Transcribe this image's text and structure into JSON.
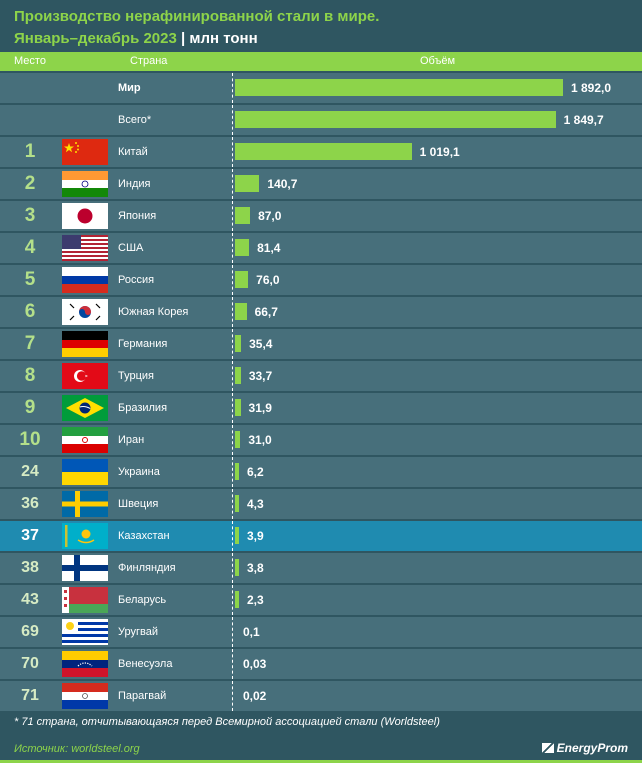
{
  "header": {
    "title": "Производство нерафинированной стали в мире.",
    "subtitle": "Январь–декабрь 2023",
    "separator": "|",
    "unit": "млн тонн",
    "col_place": "Место",
    "col_country": "Страна",
    "col_volume": "Объём"
  },
  "chart_data": {
    "type": "bar",
    "orientation": "horizontal",
    "value_max": 1892.0,
    "rows": [
      {
        "rank": "",
        "country": "Мир",
        "value": 1892.0,
        "label": "1 892,0",
        "flag": "",
        "bold": true
      },
      {
        "rank": "",
        "country": "Всего*",
        "value": 1849.7,
        "label": "1 849,7",
        "flag": "",
        "bold": false
      },
      {
        "rank": "1",
        "country": "Китай",
        "value": 1019.1,
        "label": "1 019,1",
        "flag": "china-flag-icon"
      },
      {
        "rank": "2",
        "country": "Индия",
        "value": 140.7,
        "label": "140,7",
        "flag": "india-flag-icon"
      },
      {
        "rank": "3",
        "country": "Япония",
        "value": 87.0,
        "label": "87,0",
        "flag": "japan-flag-icon"
      },
      {
        "rank": "4",
        "country": "США",
        "value": 81.4,
        "label": "81,4",
        "flag": "usa-flag-icon"
      },
      {
        "rank": "5",
        "country": "Россия",
        "value": 76.0,
        "label": "76,0",
        "flag": "russia-flag-icon"
      },
      {
        "rank": "6",
        "country": "Южная Корея",
        "value": 66.7,
        "label": "66,7",
        "flag": "south-korea-flag-icon"
      },
      {
        "rank": "7",
        "country": "Германия",
        "value": 35.4,
        "label": "35,4",
        "flag": "germany-flag-icon"
      },
      {
        "rank": "8",
        "country": "Турция",
        "value": 33.7,
        "label": "33,7",
        "flag": "turkey-flag-icon"
      },
      {
        "rank": "9",
        "country": "Бразилия",
        "value": 31.9,
        "label": "31,9",
        "flag": "brazil-flag-icon"
      },
      {
        "rank": "10",
        "country": "Иран",
        "value": 31.0,
        "label": "31,0",
        "flag": "iran-flag-icon"
      },
      {
        "rank": "24",
        "country": "Украина",
        "value": 6.2,
        "label": "6,2",
        "flag": "ukraine-flag-icon"
      },
      {
        "rank": "36",
        "country": "Швеция",
        "value": 4.3,
        "label": "4,3",
        "flag": "sweden-flag-icon"
      },
      {
        "rank": "37",
        "country": "Казахстан",
        "value": 3.9,
        "label": "3,9",
        "flag": "kazakhstan-flag-icon",
        "highlight": true
      },
      {
        "rank": "38",
        "country": "Финляндия",
        "value": 3.8,
        "label": "3,8",
        "flag": "finland-flag-icon"
      },
      {
        "rank": "43",
        "country": "Беларусь",
        "value": 2.3,
        "label": "2,3",
        "flag": "belarus-flag-icon"
      },
      {
        "rank": "69",
        "country": "Уругвай",
        "value": 0.1,
        "label": "0,1",
        "flag": "uruguay-flag-icon"
      },
      {
        "rank": "70",
        "country": "Венесуэла",
        "value": 0.03,
        "label": "0,03",
        "flag": "venezuela-flag-icon"
      },
      {
        "rank": "71",
        "country": "Парагвай",
        "value": 0.02,
        "label": "0,02",
        "flag": "paraguay-flag-icon"
      }
    ]
  },
  "footer": {
    "footnote": "* 71 страна, отчитывающаяся перед Всемирной ассоциацией стали (Worldsteel)",
    "source": "Источник: worldsteel.org",
    "logo": "EnergyProm"
  },
  "colors": {
    "background": "#2f5661",
    "row": "#476f7b",
    "highlight_row": "#1f8bb0",
    "accent": "#8dd44a"
  }
}
